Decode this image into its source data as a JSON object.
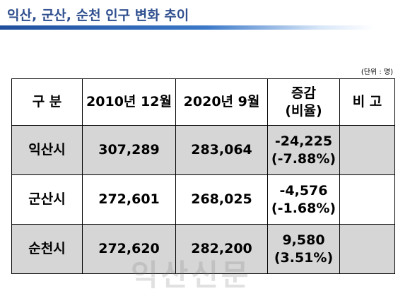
{
  "title": "익산, 군산, 순천 인구 변화 추이",
  "unit_note": "(단위 : 명)",
  "table": {
    "headers": {
      "category": "구 분",
      "dec2010": "2010년 12월",
      "sep2020": "2020년 9월",
      "change_line1": "증감",
      "change_line2": "(비율)",
      "remark": "비 고"
    },
    "rows": [
      {
        "city": "익산시",
        "dec2010": "307,289",
        "sep2020": "283,064",
        "change": "-24,225",
        "rate": "(-7.88%)",
        "remark": ""
      },
      {
        "city": "군산시",
        "dec2010": "272,601",
        "sep2020": "268,025",
        "change": "-4,576",
        "rate": "(-1.68%)",
        "remark": ""
      },
      {
        "city": "순천시",
        "dec2010": "272,620",
        "sep2020": "282,200",
        "change": "9,580",
        "rate": "(3.51%)",
        "remark": ""
      }
    ]
  },
  "watermark": "익산신문"
}
